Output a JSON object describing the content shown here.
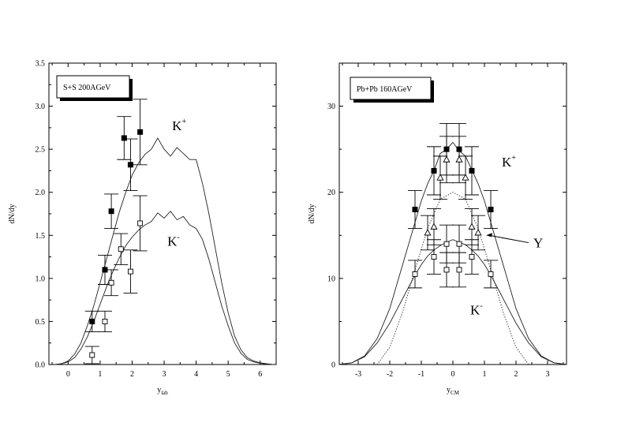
{
  "chart_data": [
    {
      "type": "scatter",
      "title": "S+S 200AGeV",
      "xlabel": "y",
      "xlabel_sub": "lab",
      "ylabel": "dN/dy",
      "xlim": [
        -0.6,
        6.5
      ],
      "ylim": [
        0,
        3.5
      ],
      "xticks": [
        "0",
        "1",
        "2",
        "3",
        "4",
        "5",
        "6"
      ],
      "yticks": [
        "0.0",
        "0.5",
        "1.0",
        "1.5",
        "2.0",
        "2.5",
        "3.0",
        "3.5"
      ],
      "grid": false,
      "series": [
        {
          "name": "K+",
          "kind": "points",
          "marker": "filled-square",
          "points": [
            [
              0.75,
              0.5,
              0.12
            ],
            [
              1.15,
              1.1,
              0.17
            ],
            [
              1.35,
              1.78,
              0.2
            ],
            [
              1.75,
              2.63,
              0.25
            ],
            [
              1.95,
              2.32,
              0.3
            ],
            [
              2.25,
              2.7,
              0.38
            ]
          ]
        },
        {
          "name": "K-",
          "kind": "points",
          "marker": "open-square",
          "points": [
            [
              0.75,
              0.11,
              0.1
            ],
            [
              1.15,
              0.5,
              0.12
            ],
            [
              1.35,
              0.95,
              0.15
            ],
            [
              1.65,
              1.34,
              0.18
            ],
            [
              1.95,
              1.08,
              0.25
            ],
            [
              2.25,
              1.64,
              0.32
            ]
          ]
        },
        {
          "name": "K+",
          "kind": "line",
          "label": "K",
          "label_sup": "+",
          "x": [
            -0.4,
            -0.2,
            0,
            0.2,
            0.4,
            0.6,
            0.8,
            1.0,
            1.2,
            1.4,
            1.6,
            1.8,
            2.0,
            2.2,
            2.4,
            2.6,
            2.8,
            3.0,
            3.2,
            3.4,
            3.6,
            3.8,
            4.0,
            4.2,
            4.4,
            4.6,
            4.8,
            5.0,
            5.2,
            5.4,
            5.6,
            5.8,
            6.0,
            6.2,
            6.4
          ],
          "y": [
            0.0,
            0.01,
            0.04,
            0.12,
            0.25,
            0.45,
            0.68,
            0.95,
            1.22,
            1.5,
            1.77,
            2.0,
            2.2,
            2.34,
            2.44,
            2.5,
            2.63,
            2.5,
            2.42,
            2.52,
            2.45,
            2.38,
            2.38,
            2.1,
            1.75,
            1.35,
            0.95,
            0.6,
            0.33,
            0.17,
            0.08,
            0.04,
            0.02,
            0.01,
            0.0
          ]
        },
        {
          "name": "K-",
          "kind": "line",
          "label": "K",
          "label_sup": "-",
          "x": [
            -0.4,
            -0.2,
            0,
            0.2,
            0.4,
            0.6,
            0.8,
            1.0,
            1.2,
            1.4,
            1.6,
            1.8,
            2.0,
            2.2,
            2.4,
            2.6,
            2.8,
            3.0,
            3.2,
            3.4,
            3.6,
            3.8,
            4.0,
            4.2,
            4.4,
            4.6,
            4.8,
            5.0,
            5.2,
            5.4,
            5.6,
            5.8,
            6.0,
            6.2,
            6.4
          ],
          "y": [
            0.0,
            0.01,
            0.03,
            0.08,
            0.18,
            0.32,
            0.5,
            0.7,
            0.9,
            1.08,
            1.24,
            1.38,
            1.48,
            1.56,
            1.62,
            1.66,
            1.76,
            1.7,
            1.78,
            1.68,
            1.72,
            1.62,
            1.58,
            1.45,
            1.22,
            0.95,
            0.68,
            0.45,
            0.25,
            0.13,
            0.06,
            0.03,
            0.015,
            0.005,
            0.0
          ]
        }
      ]
    },
    {
      "type": "scatter",
      "title": "Pb+Pb 160AGeV",
      "xlabel": "y",
      "xlabel_sub": "CM",
      "ylabel": "dN/dy",
      "xlim": [
        -3.6,
        3.6
      ],
      "ylim": [
        0,
        35
      ],
      "xticks": [
        "-3",
        "-2",
        "-1",
        "0",
        "1",
        "2",
        "3"
      ],
      "yticks": [
        "0",
        "10",
        "20",
        "30"
      ],
      "grid": false,
      "series": [
        {
          "name": "K+",
          "kind": "points",
          "marker": "filled-square",
          "points": [
            [
              -1.2,
              18,
              2.2
            ],
            [
              -0.6,
              22.5,
              2.8
            ],
            [
              -0.2,
              25,
              3.0
            ],
            [
              0.2,
              25,
              3.0
            ],
            [
              0.6,
              22.5,
              2.8
            ],
            [
              1.2,
              18,
              2.2
            ]
          ]
        },
        {
          "name": "K-",
          "kind": "points",
          "marker": "open-square",
          "points": [
            [
              -1.2,
              10.5,
              1.6
            ],
            [
              -0.6,
              12.5,
              2.0
            ],
            [
              -0.2,
              14,
              2.2
            ],
            [
              -0.2,
              11,
              2.0
            ],
            [
              0.2,
              14,
              2.2
            ],
            [
              0.2,
              11,
              2.0
            ],
            [
              0.6,
              12.5,
              2.0
            ],
            [
              1.2,
              10.5,
              1.6
            ]
          ]
        },
        {
          "name": "Y",
          "kind": "points",
          "marker": "open-triangle",
          "points": [
            [
              -0.8,
              15.3,
              2.0
            ],
            [
              -0.6,
              16,
              2.1
            ],
            [
              -0.4,
              21.7,
              2.5
            ],
            [
              -0.2,
              23.8,
              2.7
            ],
            [
              0.2,
              23.8,
              2.7
            ],
            [
              0.4,
              21.7,
              2.5
            ],
            [
              0.6,
              16,
              2.1
            ],
            [
              0.8,
              15.3,
              2.0
            ]
          ]
        },
        {
          "name": "K+",
          "kind": "line",
          "label": "K",
          "label_sup": "+",
          "x": [
            -3.6,
            -3.2,
            -2.8,
            -2.4,
            -2.0,
            -1.8,
            -1.6,
            -1.4,
            -1.2,
            -1.0,
            -0.8,
            -0.6,
            -0.4,
            -0.2,
            0.0,
            0.2,
            0.4,
            0.6,
            0.8,
            1.0,
            1.2,
            1.4,
            1.6,
            1.8,
            2.0,
            2.4,
            2.8,
            3.2,
            3.6
          ],
          "y": [
            0.0,
            0.2,
            1.0,
            3.0,
            6.5,
            9.0,
            11.5,
            14.0,
            16.5,
            19.0,
            21.0,
            22.5,
            24.5,
            25.0,
            25.8,
            24.8,
            24.2,
            22.6,
            21.0,
            19.0,
            16.5,
            14.0,
            11.5,
            9.0,
            6.5,
            3.0,
            1.0,
            0.2,
            0.0
          ]
        },
        {
          "name": "K-",
          "kind": "line",
          "label": "K",
          "label_sup": "-",
          "x": [
            -3.6,
            -3.2,
            -2.8,
            -2.4,
            -2.0,
            -1.8,
            -1.6,
            -1.4,
            -1.2,
            -1.0,
            -0.8,
            -0.6,
            -0.4,
            -0.2,
            0.0,
            0.2,
            0.4,
            0.6,
            0.8,
            1.0,
            1.2,
            1.4,
            1.6,
            1.8,
            2.0,
            2.4,
            2.8,
            3.2,
            3.6
          ],
          "y": [
            0.0,
            0.2,
            0.9,
            2.5,
            4.8,
            6.2,
            7.6,
            9.0,
            10.4,
            11.6,
            12.6,
            13.3,
            13.8,
            14.2,
            14.5,
            14.2,
            13.9,
            13.3,
            12.6,
            11.6,
            10.4,
            9.0,
            7.6,
            6.2,
            4.8,
            2.5,
            0.9,
            0.2,
            0.0
          ]
        },
        {
          "name": "Y",
          "kind": "dotted-line",
          "label": "Y",
          "x": [
            -2.4,
            -2.0,
            -1.6,
            -1.2,
            -0.8,
            -0.4,
            0.0,
            0.4,
            0.8,
            1.2,
            1.6,
            2.0,
            2.4
          ],
          "y": [
            0.0,
            2.0,
            6.0,
            11.0,
            15.8,
            19.2,
            20.0,
            19.2,
            15.8,
            11.0,
            6.0,
            2.0,
            0.0
          ]
        }
      ]
    }
  ]
}
